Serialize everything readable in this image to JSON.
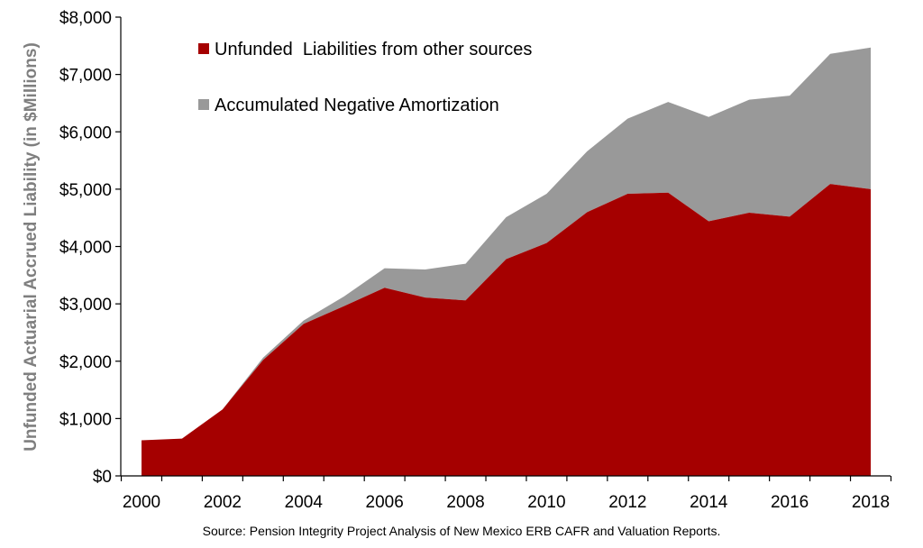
{
  "chart_data": {
    "type": "area",
    "stacked": true,
    "x": [
      2000,
      2001,
      2002,
      2003,
      2004,
      2005,
      2006,
      2007,
      2008,
      2009,
      2010,
      2011,
      2012,
      2013,
      2014,
      2015,
      2016,
      2017,
      2018
    ],
    "series": [
      {
        "name": "Unfunded  Liabilities from other sources",
        "color": "#a50000",
        "values": [
          620,
          650,
          1160,
          2020,
          2650,
          2960,
          3280,
          3110,
          3060,
          3780,
          4060,
          4600,
          4920,
          4940,
          4440,
          4590,
          4520,
          5090,
          5000
        ]
      },
      {
        "name": "Accumulated Negative Amortization",
        "color": "#999999",
        "values": [
          0,
          0,
          0,
          40,
          60,
          170,
          340,
          490,
          640,
          730,
          860,
          1060,
          1310,
          1580,
          1820,
          1970,
          2110,
          2270,
          2470
        ]
      }
    ],
    "ylim": [
      0,
      8000
    ],
    "yticks": [
      0,
      1000,
      2000,
      3000,
      4000,
      5000,
      6000,
      7000,
      8000
    ],
    "ytick_labels": [
      "$0",
      "$1,000",
      "$2,000",
      "$3,000",
      "$4,000",
      "$5,000",
      "$6,000",
      "$7,000",
      "$8,000"
    ],
    "xticks": [
      2000,
      2002,
      2004,
      2006,
      2008,
      2010,
      2012,
      2014,
      2016,
      2018
    ],
    "xtick_labels": [
      "2000",
      "2002",
      "2004",
      "2006",
      "2008",
      "2010",
      "2012",
      "2014",
      "2016",
      "2018"
    ],
    "ylabel": "Unfunded Actuarial Accrued Liability (in $Millions)",
    "xlabel": "",
    "title": "",
    "legend_position": "top-left",
    "grid": false
  },
  "source_note": "Source: Pension Integrity Project Analysis of New Mexico ERB CAFR and Valuation Reports."
}
